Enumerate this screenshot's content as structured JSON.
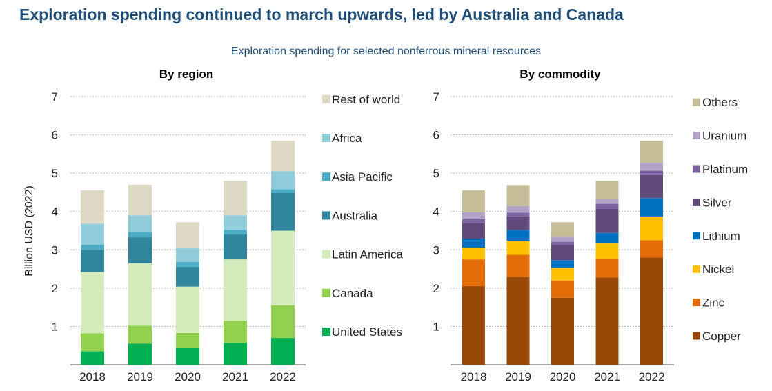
{
  "title": "Exploration spending continued to march upwards, led by Australia and Canada",
  "subtitle": "Exploration spending for selected nonferrous mineral resources",
  "ylabel": "Billion USD (2022)",
  "chart_data": [
    {
      "type": "bar",
      "stacked": true,
      "title": "By region",
      "ylabel": "Billion USD (2022)",
      "ylim": [
        0,
        7
      ],
      "yticks": [
        1,
        2,
        3,
        4,
        5,
        6,
        7
      ],
      "grid": true,
      "legend": "right",
      "categories": [
        "2018",
        "2019",
        "2020",
        "2021",
        "2022"
      ],
      "series": [
        {
          "name": "United States",
          "color": "#00b050",
          "values": [
            0.35,
            0.55,
            0.45,
            0.57,
            0.7
          ]
        },
        {
          "name": "Canada",
          "color": "#92d050",
          "values": [
            0.47,
            0.47,
            0.38,
            0.58,
            0.85
          ]
        },
        {
          "name": "Latin America",
          "color": "#d4ecbc",
          "values": [
            1.6,
            1.63,
            1.21,
            1.6,
            1.95
          ]
        },
        {
          "name": "Australia",
          "color": "#31859c",
          "values": [
            0.58,
            0.67,
            0.52,
            0.65,
            0.98
          ]
        },
        {
          "name": "Asia Pacific",
          "color": "#4bacc6",
          "values": [
            0.13,
            0.15,
            0.12,
            0.12,
            0.1
          ]
        },
        {
          "name": "Africa",
          "color": "#92cddc",
          "values": [
            0.55,
            0.43,
            0.36,
            0.38,
            0.47
          ]
        },
        {
          "name": "Rest of world",
          "color": "#ddd9c4",
          "values": [
            0.87,
            0.8,
            0.68,
            0.9,
            0.8
          ]
        }
      ]
    },
    {
      "type": "bar",
      "stacked": true,
      "title": "By commodity",
      "ylim": [
        0,
        7
      ],
      "yticks": [
        1,
        2,
        3,
        4,
        5,
        6,
        7
      ],
      "grid": true,
      "legend": "right",
      "categories": [
        "2018",
        "2019",
        "2020",
        "2021",
        "2022"
      ],
      "series": [
        {
          "name": "Copper",
          "color": "#984807",
          "values": [
            2.05,
            2.3,
            1.75,
            2.28,
            2.8
          ]
        },
        {
          "name": "Zinc",
          "color": "#e36c09",
          "values": [
            0.7,
            0.57,
            0.45,
            0.48,
            0.45
          ]
        },
        {
          "name": "Nickel",
          "color": "#ffc000",
          "values": [
            0.3,
            0.37,
            0.33,
            0.42,
            0.62
          ]
        },
        {
          "name": "Lithium",
          "color": "#0070c0",
          "values": [
            0.24,
            0.28,
            0.2,
            0.26,
            0.48
          ]
        },
        {
          "name": "Silver",
          "color": "#604a7b",
          "values": [
            0.4,
            0.35,
            0.4,
            0.63,
            0.6
          ]
        },
        {
          "name": "Platinum",
          "color": "#7f62a1",
          "values": [
            0.11,
            0.1,
            0.08,
            0.13,
            0.12
          ]
        },
        {
          "name": "Uranium",
          "color": "#b3a2c7",
          "values": [
            0.18,
            0.17,
            0.13,
            0.12,
            0.2
          ]
        },
        {
          "name": "Others",
          "color": "#c4bd97",
          "values": [
            0.57,
            0.55,
            0.38,
            0.48,
            0.58
          ]
        }
      ]
    }
  ]
}
